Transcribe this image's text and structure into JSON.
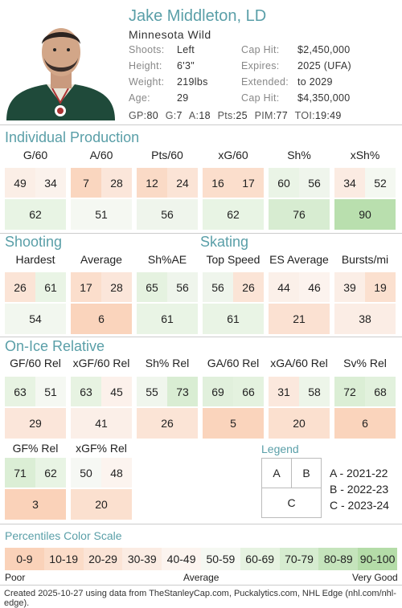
{
  "player": {
    "name": "Jake Middleton, LD",
    "team": "Minnesota Wild"
  },
  "bio": {
    "left": [
      {
        "label": "Shoots:",
        "value": "Left"
      },
      {
        "label": "Height:",
        "value": "6'3\""
      },
      {
        "label": "Weight:",
        "value": "219lbs"
      },
      {
        "label": "Age:",
        "value": "29"
      }
    ],
    "right": [
      {
        "label": "Cap Hit:",
        "value": "$2,450,000"
      },
      {
        "label": "Expires:",
        "value": "2025 (UFA)"
      },
      {
        "label": "Extended:",
        "value": "to 2029"
      },
      {
        "label": "Cap Hit:",
        "value": "$4,350,000"
      }
    ]
  },
  "stats_line": [
    {
      "label": "GP:",
      "value": "80"
    },
    {
      "label": "G:",
      "value": "7"
    },
    {
      "label": "A:",
      "value": "18"
    },
    {
      "label": "Pts:",
      "value": "25"
    },
    {
      "label": "PIM:",
      "value": "77"
    },
    {
      "label": "TOI:",
      "value": "19:49"
    }
  ],
  "sections": {
    "individual": "Individual Production",
    "shooting": "Shooting",
    "skating": "Skating",
    "onice": "On-Ice Relative"
  },
  "metrics": [
    {
      "label": "G/60",
      "a": "49",
      "b": "34",
      "c": "62",
      "ca": "#fbeee6",
      "cb": "#fbf2ec",
      "cc": "#e8f4e4"
    },
    {
      "label": "A/60",
      "a": "7",
      "b": "28",
      "c": "51",
      "ca": "#fad6bf",
      "cb": "#fbe6da",
      "cc": "#f5f8f2"
    },
    {
      "label": "Pts/60",
      "a": "12",
      "b": "24",
      "c": "56",
      "ca": "#fadac6",
      "cb": "#fbe4d6",
      "cc": "#eff5ec"
    },
    {
      "label": "xG/60",
      "a": "16",
      "b": "17",
      "c": "62",
      "ca": "#fbdecc",
      "cb": "#fbdecc",
      "cc": "#e8f4e4"
    },
    {
      "label": "Sh%",
      "a": "60",
      "b": "56",
      "c": "76",
      "ca": "#eaf4e6",
      "cb": "#eff5ec",
      "cc": "#d7ecd1"
    },
    {
      "label": "xSh%",
      "a": "34",
      "b": "52",
      "c": "90",
      "ca": "#fbebe2",
      "cb": "#f4f8f1",
      "cc": "#b9dfae"
    },
    {
      "label": "Hardest",
      "a": "26",
      "b": "61",
      "c": "54",
      "ca": "#fbe4d6",
      "cb": "#e9f4e5",
      "cc": "#f2f7ef"
    },
    {
      "label": "Average",
      "a": "17",
      "b": "28",
      "c": "6",
      "ca": "#fbdecc",
      "cb": "#fbe6da",
      "cc": "#fad4bc"
    },
    {
      "label": "Sh%AE",
      "a": "65",
      "b": "56",
      "c": "61",
      "ca": "#e5f2e0",
      "cb": "#eff5ec",
      "cc": "#e9f4e5"
    },
    {
      "label": "Top Speed",
      "a": "56",
      "b": "26",
      "c": "61",
      "ca": "#eff5ec",
      "cb": "#fbe4d6",
      "cc": "#e9f4e5"
    },
    {
      "label": "ES Average",
      "a": "44",
      "b": "46",
      "c": "21",
      "ca": "#fbf0e9",
      "cb": "#fcf3ee",
      "cc": "#fbe1d2"
    },
    {
      "label": "Bursts/mi",
      "a": "39",
      "b": "19",
      "c": "38",
      "ca": "#fbeee6",
      "cb": "#fbe0cf",
      "cc": "#fbede5"
    },
    {
      "label": "GF/60 Rel",
      "a": "63",
      "b": "51",
      "c": "29",
      "ca": "#e7f3e2",
      "cb": "#f5f8f2",
      "cc": "#fbe6da"
    },
    {
      "label": "xGF/60 Rel",
      "a": "63",
      "b": "45",
      "c": "41",
      "ca": "#e7f3e2",
      "cb": "#fcf1eb",
      "cc": "#fbefe8"
    },
    {
      "label": "Sh% Rel",
      "a": "55",
      "b": "73",
      "c": "26",
      "ca": "#f0f6ed",
      "cb": "#d9edd3",
      "cc": "#fbe4d6"
    },
    {
      "label": "GA/60 Rel",
      "a": "69",
      "b": "66",
      "c": "5",
      "ca": "#e1f0dc",
      "cb": "#e4f2df",
      "cc": "#fad4bc"
    },
    {
      "label": "xGA/60 Rel",
      "a": "31",
      "b": "58",
      "c": "20",
      "ca": "#fbe8dd",
      "cb": "#edf5e9",
      "cc": "#fbe0cf"
    },
    {
      "label": "Sv% Rel",
      "a": "72",
      "b": "68",
      "c": "6",
      "ca": "#dbeed5",
      "cb": "#e2f1dd",
      "cc": "#fad4bc"
    },
    {
      "label": "GF% Rel",
      "a": "71",
      "b": "62",
      "c": "3",
      "ca": "#dbeed5",
      "cb": "#e8f4e4",
      "cc": "#fad2b9"
    },
    {
      "label": "xGF% Rel",
      "a": "50",
      "b": "48",
      "c": "20",
      "ca": "#f6f8f4",
      "cb": "#fcf4ef",
      "cc": "#fbe0cf"
    }
  ],
  "legend": {
    "title": "Legend",
    "a": "A",
    "b": "B",
    "c": "C",
    "items": [
      "A - 2021-22",
      "B - 2022-23",
      "C - 2023-24"
    ]
  },
  "scale": {
    "title": "Percentiles Color Scale",
    "bins": [
      {
        "label": "0-9",
        "color": "#fad2b9"
      },
      {
        "label": "10-19",
        "color": "#fbdcc8"
      },
      {
        "label": "20-29",
        "color": "#fbe4d6"
      },
      {
        "label": "30-39",
        "color": "#fbece3"
      },
      {
        "label": "40-49",
        "color": "#fcf4ef"
      },
      {
        "label": "50-59",
        "color": "#f5f8f2"
      },
      {
        "label": "60-69",
        "color": "#e6f3e1"
      },
      {
        "label": "70-79",
        "color": "#d6ecd0"
      },
      {
        "label": "80-89",
        "color": "#c5e4bc"
      },
      {
        "label": "90-100",
        "color": "#b4dca8"
      }
    ],
    "poor": "Poor",
    "average": "Average",
    "good": "Very Good"
  },
  "footer": "Created 2025-10-27 using data from TheStanleyCap.com, Puckalytics.com, NHL Edge (nhl.com/nhl-edge).",
  "colors": {
    "accent": "#5a9fa8",
    "jersey": "#1f4a3a"
  }
}
